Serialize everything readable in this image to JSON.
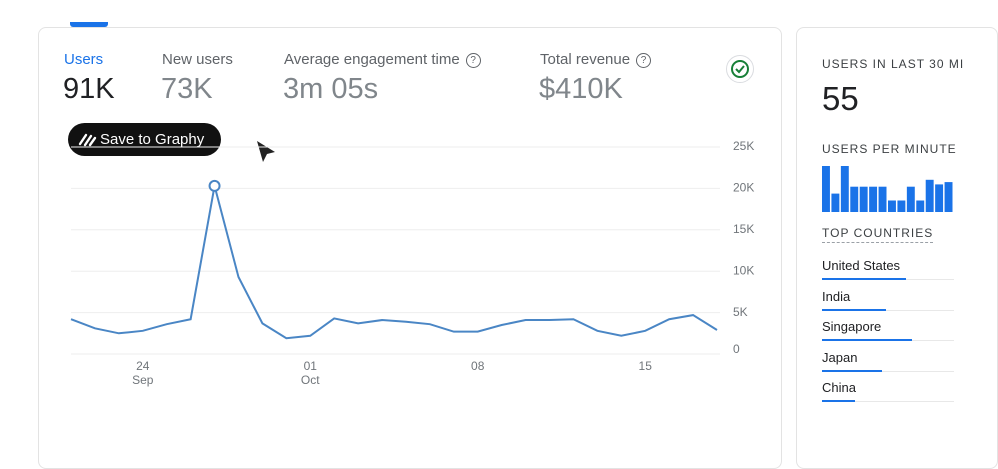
{
  "metrics": [
    {
      "label": "Users",
      "value": "91K"
    },
    {
      "label": "New users",
      "value": "73K"
    },
    {
      "label": "Average engagement time",
      "value": "3m 05s"
    },
    {
      "label": "Total revenue",
      "value": "$410K"
    }
  ],
  "save_button": "Save to Graphy",
  "chart_data": {
    "type": "line",
    "categories": [
      null,
      null,
      null,
      {
        "day": "24",
        "month": "Sep"
      },
      null,
      null,
      null,
      null,
      null,
      null,
      {
        "day": "01",
        "month": "Oct"
      },
      null,
      null,
      null,
      null,
      null,
      null,
      {
        "day": "08"
      },
      null,
      null,
      null,
      null,
      null,
      null,
      {
        "day": "15"
      },
      null,
      null,
      null
    ],
    "series": [
      {
        "name": "Users",
        "color": "#4a86c5",
        "values": [
          4200,
          3100,
          2500,
          2800,
          3600,
          4200,
          20300,
          9300,
          3700,
          1900,
          2200,
          4300,
          3700,
          4100,
          3900,
          3600,
          2700,
          2700,
          3500,
          4100,
          4100,
          4200,
          2800,
          2200,
          2800,
          4200,
          4700,
          2900
        ]
      }
    ],
    "ylim": [
      0,
      25000
    ],
    "yticks": [
      {
        "value": 0,
        "label": "0"
      },
      {
        "value": 5000,
        "label": "5K"
      },
      {
        "value": 10000,
        "label": "10K"
      },
      {
        "value": 15000,
        "label": "15K"
      },
      {
        "value": 20000,
        "label": "20K"
      },
      {
        "value": 25000,
        "label": "25K"
      }
    ],
    "grid": true
  },
  "realtime": {
    "title": "USERS IN LAST 30 MI",
    "value": "55",
    "per_minute_title": "USERS PER MINUTE",
    "per_minute_chart": {
      "type": "bar",
      "color": "#1a73e8",
      "values": [
        4,
        1.6,
        4,
        2.2,
        2.2,
        2.2,
        2.2,
        1,
        1,
        2.2,
        1,
        2.8,
        2.4,
        2.6
      ]
    },
    "countries_title": "TOP COUNTRIES",
    "countries": [
      {
        "name": "United States",
        "value": 84
      },
      {
        "name": "India",
        "value": 64
      },
      {
        "name": "Singapore",
        "value": 90
      },
      {
        "name": "Japan",
        "value": 60
      },
      {
        "name": "China",
        "value": 33
      }
    ]
  }
}
